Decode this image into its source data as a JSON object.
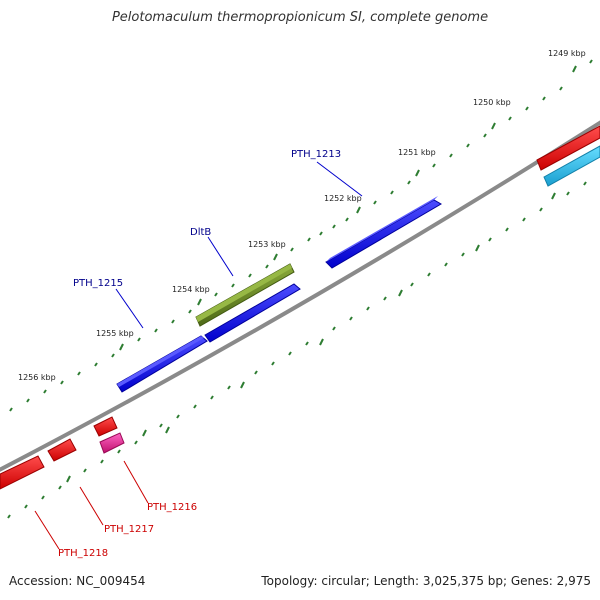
{
  "title": "Pelotomaculum thermopropionicum SI, complete genome",
  "footer": {
    "accession": "Accession: NC_009454",
    "summary": "Topology: circular; Length: 3,025,375 bp; Genes: 2,975"
  },
  "colors": {
    "backbone": "#8a8a8a",
    "tick": "#2e7d32",
    "forward_gene": "#0000e6",
    "reverse_gene": "#ee0000",
    "named_gene": "#6b8e23",
    "rna_gene": "#e6198c",
    "other_gene": "#22bbee",
    "forward_label": "#00008b",
    "reverse_label": "#cc0000"
  },
  "ruler": {
    "unit": "kbp",
    "labels": [
      "1249 kbp",
      "1250 kbp",
      "1251 kbp",
      "1252 kbp",
      "1253 kbp",
      "1254 kbp",
      "1255 kbp",
      "1256 kbp"
    ]
  },
  "genes": {
    "forward": [
      {
        "name": "PTH_1213",
        "strand": "+",
        "color": "forward_gene"
      },
      {
        "name": "DltB",
        "strand": "+",
        "color": "named_gene"
      },
      {
        "name": "PTH_1215",
        "strand": "+",
        "color": "forward_gene"
      }
    ],
    "reverse": [
      {
        "name": "PTH_1216",
        "strand": "-",
        "color": "rna_gene"
      },
      {
        "name": "PTH_1217",
        "strand": "-",
        "color": "reverse_gene"
      },
      {
        "name": "PTH_1218",
        "strand": "-",
        "color": "reverse_gene"
      }
    ]
  }
}
